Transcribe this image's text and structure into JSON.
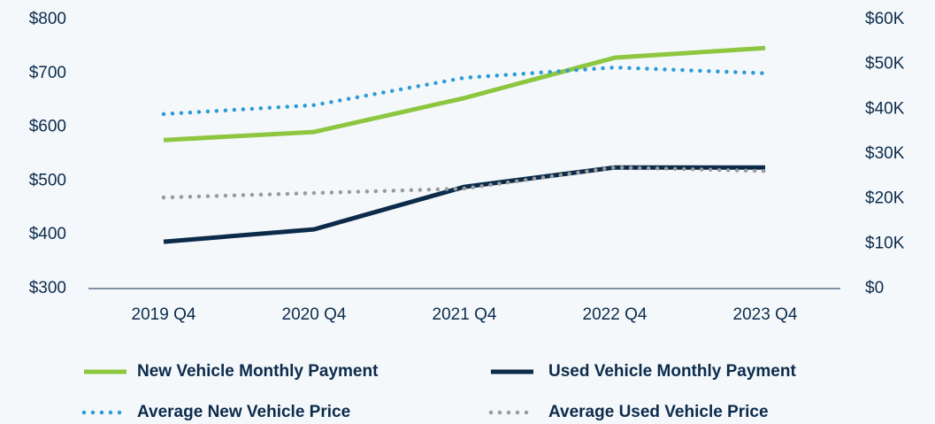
{
  "chart_data": {
    "type": "line",
    "categories": [
      "2019 Q4",
      "2020 Q4",
      "2021 Q4",
      "2022 Q4",
      "2023 Q4"
    ],
    "series": [
      {
        "name": "New Vehicle Monthly Payment",
        "color": "#8dc63f",
        "style": "solid",
        "values": [
          576,
          591,
          654,
          729,
          747
        ]
      },
      {
        "name": "Used Vehicle Monthly Payment",
        "color": "#0c2b4b",
        "style": "solid",
        "values": [
          387,
          410,
          489,
          525,
          525
        ]
      },
      {
        "name": "Average New Vehicle Price",
        "color": "#2e9bd6",
        "style": "dotted",
        "axis": "y2",
        "values": [
          38900,
          40900,
          47000,
          49300,
          48000
        ]
      },
      {
        "name": "Average Used Vehicle Price",
        "color": "#9b9b9b",
        "style": "dotted",
        "axis": "y2",
        "values": [
          20300,
          21300,
          22300,
          27000,
          26200
        ]
      }
    ],
    "ylim": [
      300,
      800
    ],
    "yticks": [
      {
        "value": 300,
        "label": "$300"
      },
      {
        "value": 400,
        "label": "$400"
      },
      {
        "value": 500,
        "label": "$500"
      },
      {
        "value": 600,
        "label": "$600"
      },
      {
        "value": 700,
        "label": "$700"
      },
      {
        "value": 800,
        "label": "$800"
      }
    ],
    "y2lim": [
      0,
      60000
    ],
    "y2ticks": [
      {
        "value": 0,
        "label": "$0"
      },
      {
        "value": 10000,
        "label": "$10K"
      },
      {
        "value": 20000,
        "label": "$20K"
      },
      {
        "value": 30000,
        "label": "$30K"
      },
      {
        "value": 40000,
        "label": "$40K"
      },
      {
        "value": 50000,
        "label": "$50K"
      },
      {
        "value": 60000,
        "label": "$60K"
      }
    ],
    "grid": false
  }
}
